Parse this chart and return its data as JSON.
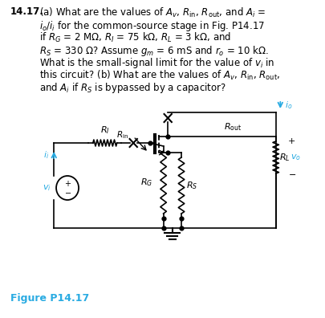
{
  "title_number": "14.17.",
  "text_color": "#000000",
  "cyan_color": "#29ABE2",
  "fig_label": "Figure P14.17",
  "background": "#ffffff",
  "figsize": [
    4.05,
    3.96
  ],
  "dpi": 100
}
